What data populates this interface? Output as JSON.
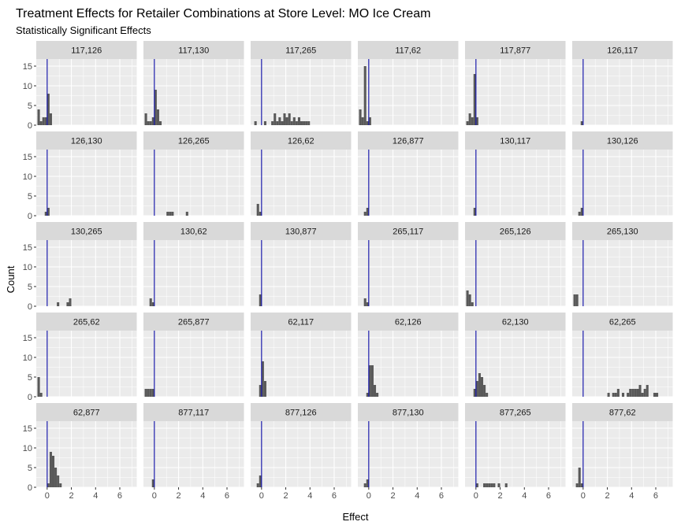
{
  "chart_data": {
    "type": "bar",
    "title": "Treatment Effects for Retailer Combinations at Store Level: MO Ice Cream",
    "subtitle": "Statistically Significant Effects",
    "xlabel": "Effect",
    "ylabel": "Count",
    "xlim": [
      -0.9,
      7.4
    ],
    "ylim": [
      0,
      16.8
    ],
    "x_ticks": [
      0,
      2,
      4,
      6
    ],
    "y_ticks": [
      0,
      5,
      10,
      15
    ],
    "bin_width": 0.2,
    "reference_line_x": 0,
    "reference_line_color": "#1a1aaa",
    "bar_color": "#595959",
    "panel_background": "#ebebeb",
    "strip_background": "#d9d9d9",
    "grid": true,
    "panels": [
      {
        "label": "117,126",
        "bars": [
          [
            -0.8,
            4
          ],
          [
            -0.6,
            1
          ],
          [
            -0.4,
            2
          ],
          [
            -0.2,
            2
          ],
          [
            0.0,
            8
          ],
          [
            0.2,
            3
          ]
        ]
      },
      {
        "label": "117,130",
        "bars": [
          [
            -0.8,
            3
          ],
          [
            -0.6,
            1
          ],
          [
            -0.4,
            1
          ],
          [
            -0.2,
            2
          ],
          [
            0.0,
            9
          ],
          [
            0.2,
            4
          ],
          [
            0.4,
            1
          ]
        ]
      },
      {
        "label": "117,265",
        "bars": [
          [
            -0.6,
            1
          ],
          [
            0.2,
            1
          ],
          [
            0.8,
            1
          ],
          [
            1.0,
            3
          ],
          [
            1.2,
            1
          ],
          [
            1.4,
            2
          ],
          [
            1.6,
            1
          ],
          [
            1.8,
            3
          ],
          [
            2.0,
            2
          ],
          [
            2.2,
            3
          ],
          [
            2.4,
            1
          ],
          [
            2.6,
            2
          ],
          [
            2.8,
            1
          ],
          [
            3.0,
            2
          ],
          [
            3.2,
            1
          ],
          [
            3.4,
            1
          ],
          [
            3.6,
            1
          ],
          [
            3.8,
            1
          ]
        ]
      },
      {
        "label": "117,62",
        "bars": [
          [
            -0.8,
            4
          ],
          [
            -0.6,
            2
          ],
          [
            -0.4,
            15
          ],
          [
            -0.2,
            1
          ],
          [
            0.0,
            2
          ]
        ]
      },
      {
        "label": "117,877",
        "bars": [
          [
            -0.8,
            1
          ],
          [
            -0.6,
            3
          ],
          [
            -0.4,
            2
          ],
          [
            -0.2,
            13
          ],
          [
            0.0,
            2
          ]
        ]
      },
      {
        "label": "126,117",
        "bars": [
          [
            -0.2,
            1
          ]
        ]
      },
      {
        "label": "126,130",
        "bars": [
          [
            -0.2,
            1
          ],
          [
            0.0,
            2
          ]
        ]
      },
      {
        "label": "126,265",
        "bars": [
          [
            1.0,
            1
          ],
          [
            1.2,
            1
          ],
          [
            1.4,
            1
          ],
          [
            2.6,
            1
          ]
        ]
      },
      {
        "label": "126,62",
        "bars": [
          [
            -0.4,
            3
          ],
          [
            -0.2,
            1
          ]
        ]
      },
      {
        "label": "126,877",
        "bars": [
          [
            -0.4,
            1
          ],
          [
            -0.2,
            2
          ]
        ]
      },
      {
        "label": "130,117",
        "bars": [
          [
            -0.2,
            2
          ]
        ]
      },
      {
        "label": "130,126",
        "bars": [
          [
            -0.4,
            1
          ],
          [
            -0.2,
            2
          ]
        ]
      },
      {
        "label": "130,265",
        "bars": [
          [
            0.8,
            1
          ],
          [
            1.6,
            1
          ],
          [
            1.8,
            2
          ]
        ]
      },
      {
        "label": "130,62",
        "bars": [
          [
            -0.4,
            2
          ],
          [
            -0.2,
            1
          ]
        ]
      },
      {
        "label": "130,877",
        "bars": [
          [
            -0.2,
            3
          ]
        ]
      },
      {
        "label": "265,117",
        "bars": [
          [
            -0.4,
            2
          ],
          [
            -0.2,
            1
          ]
        ]
      },
      {
        "label": "265,126",
        "bars": [
          [
            -0.8,
            4
          ],
          [
            -0.6,
            3
          ],
          [
            -0.4,
            1
          ]
        ]
      },
      {
        "label": "265,130",
        "bars": [
          [
            -0.8,
            3
          ],
          [
            -0.6,
            3
          ]
        ]
      },
      {
        "label": "265,62",
        "bars": [
          [
            -0.8,
            5
          ],
          [
            -0.6,
            1
          ]
        ]
      },
      {
        "label": "265,877",
        "bars": [
          [
            -0.8,
            2
          ],
          [
            -0.6,
            2
          ],
          [
            -0.4,
            2
          ],
          [
            -0.2,
            2
          ]
        ]
      },
      {
        "label": "62,117",
        "bars": [
          [
            -0.2,
            3
          ],
          [
            0.0,
            9
          ],
          [
            0.2,
            4
          ]
        ]
      },
      {
        "label": "62,126",
        "bars": [
          [
            -0.2,
            1
          ],
          [
            0.0,
            8
          ],
          [
            0.2,
            8
          ],
          [
            0.4,
            3
          ],
          [
            0.6,
            1
          ]
        ]
      },
      {
        "label": "62,130",
        "bars": [
          [
            -0.2,
            2
          ],
          [
            0.0,
            4
          ],
          [
            0.2,
            6
          ],
          [
            0.4,
            5
          ],
          [
            0.6,
            3
          ],
          [
            0.8,
            1
          ]
        ]
      },
      {
        "label": "62,265",
        "bars": [
          [
            2.0,
            1
          ],
          [
            2.4,
            1
          ],
          [
            2.6,
            1
          ],
          [
            2.8,
            2
          ],
          [
            3.2,
            1
          ],
          [
            3.6,
            1
          ],
          [
            3.8,
            2
          ],
          [
            4.0,
            2
          ],
          [
            4.2,
            2
          ],
          [
            4.4,
            2
          ],
          [
            4.6,
            3
          ],
          [
            4.8,
            1
          ],
          [
            5.0,
            2
          ],
          [
            5.2,
            3
          ],
          [
            5.8,
            1
          ],
          [
            6.0,
            1
          ]
        ]
      },
      {
        "label": "62,877",
        "bars": [
          [
            0.0,
            1
          ],
          [
            0.2,
            9
          ],
          [
            0.4,
            8
          ],
          [
            0.6,
            5
          ],
          [
            0.8,
            3
          ],
          [
            1.0,
            1
          ]
        ]
      },
      {
        "label": "877,117",
        "bars": [
          [
            -0.2,
            2
          ]
        ]
      },
      {
        "label": "877,126",
        "bars": [
          [
            -0.4,
            1
          ],
          [
            -0.2,
            3
          ]
        ]
      },
      {
        "label": "877,130",
        "bars": [
          [
            -0.4,
            1
          ],
          [
            -0.2,
            2
          ]
        ]
      },
      {
        "label": "877,265",
        "bars": [
          [
            0.0,
            1
          ],
          [
            0.6,
            1
          ],
          [
            0.8,
            1
          ],
          [
            1.0,
            1
          ],
          [
            1.2,
            1
          ],
          [
            1.4,
            1
          ],
          [
            1.8,
            1
          ],
          [
            2.4,
            1
          ]
        ]
      },
      {
        "label": "877,62",
        "bars": [
          [
            -0.6,
            1
          ],
          [
            -0.4,
            5
          ],
          [
            -0.2,
            1
          ]
        ]
      }
    ]
  }
}
